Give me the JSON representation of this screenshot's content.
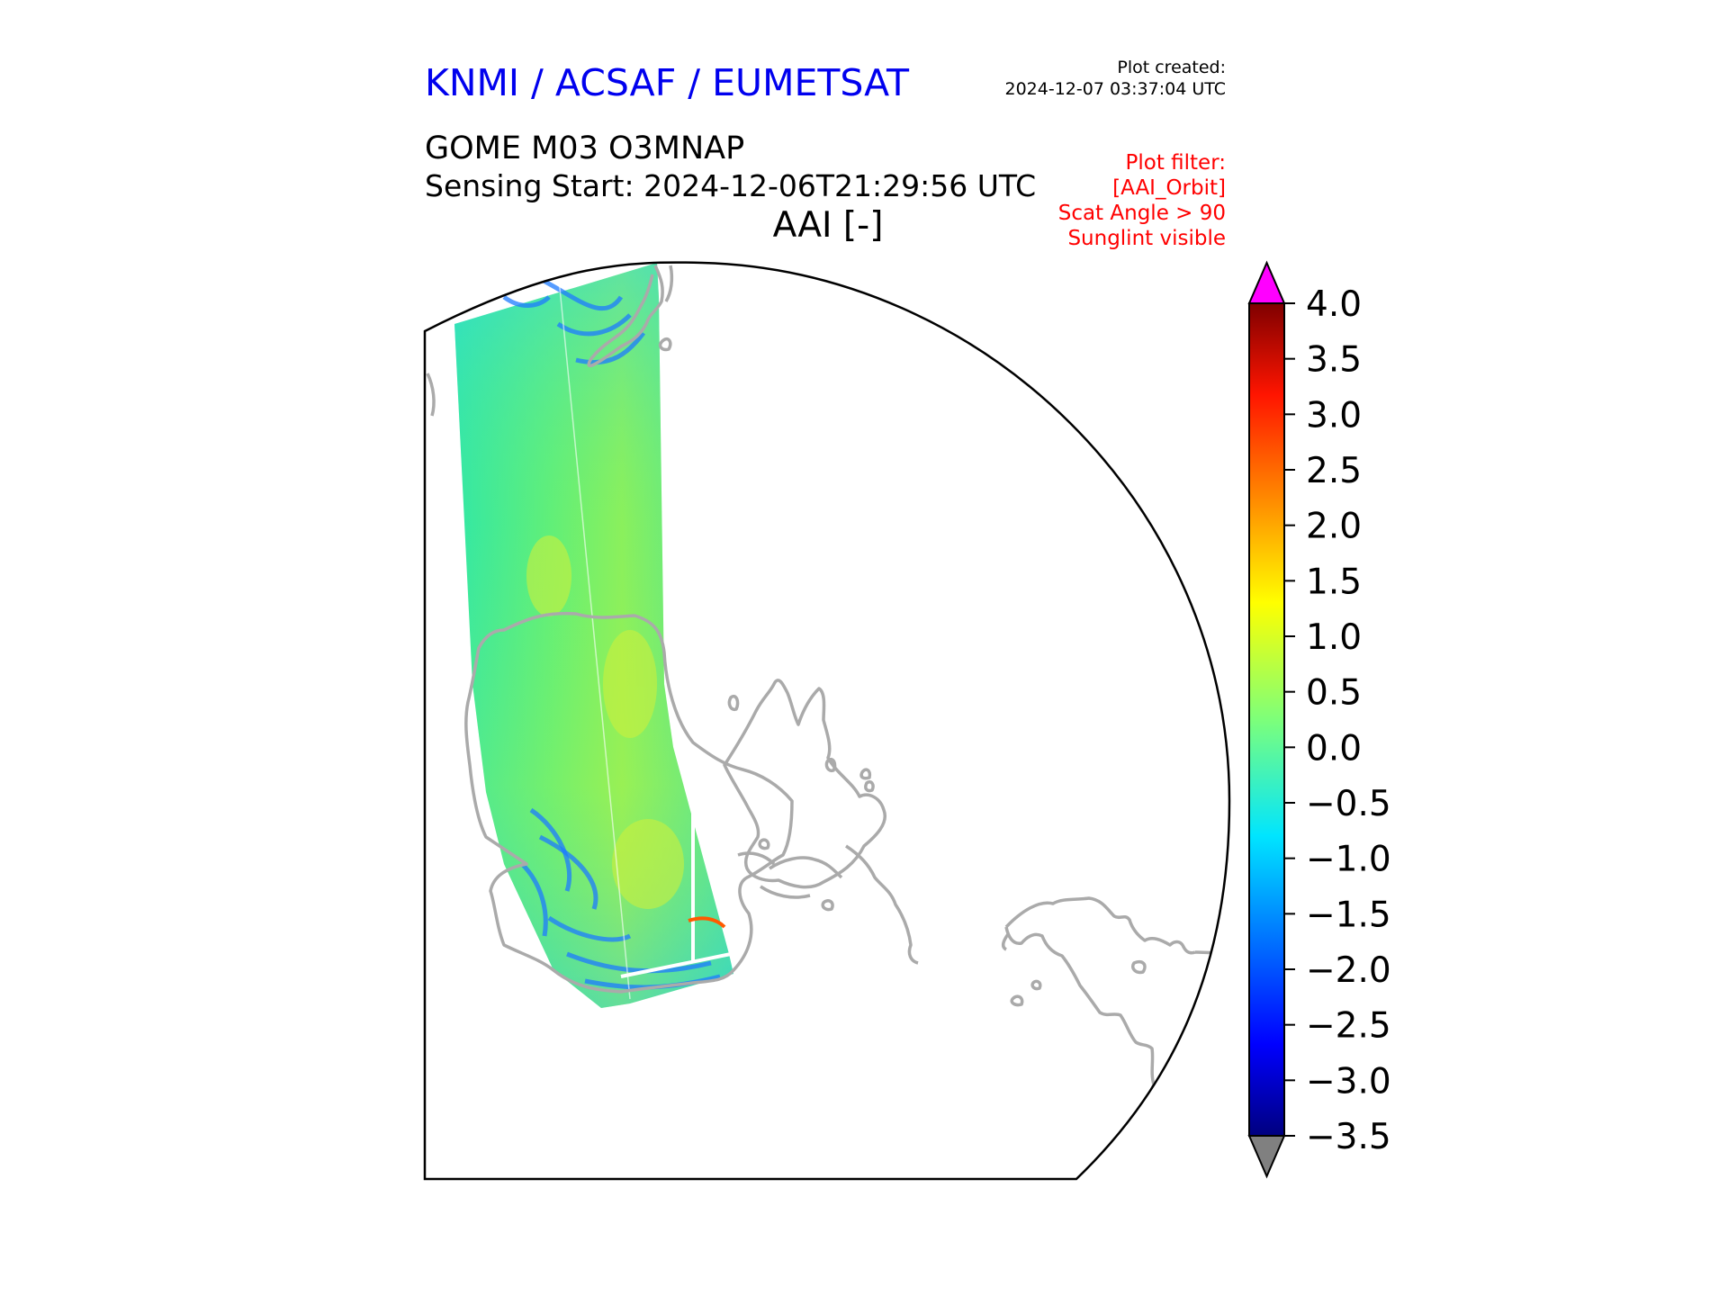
{
  "header": {
    "organization": "KNMI / ACSAF / EUMETSAT",
    "created_label": "Plot created:",
    "created_value": "2024-12-07 03:37:04 UTC",
    "product": "GOME M03 O3MNAP",
    "sensing_start": "Sensing Start: 2024-12-06T21:29:56 UTC",
    "variable": "AAI [-]"
  },
  "filter": {
    "lines": [
      "Plot filter:",
      "[AAI_Orbit]",
      "Scat Angle > 90",
      "Sunglint visible"
    ]
  },
  "colorbar": {
    "ticks": [
      "4.0",
      "3.5",
      "3.0",
      "2.5",
      "2.0",
      "1.5",
      "1.0",
      "0.5",
      "0.0",
      "−0.5",
      "−1.0",
      "−1.5",
      "−2.0",
      "−2.5",
      "−3.0",
      "−3.5"
    ],
    "vmin": -3.5,
    "vmax": 4.0,
    "over_color": "#ff00ff",
    "under_color": "#808080"
  },
  "colors": {
    "organization": "#0000ee",
    "filter": "#ff0000",
    "coastline": "#aaaaaa",
    "map_border": "#000000"
  }
}
